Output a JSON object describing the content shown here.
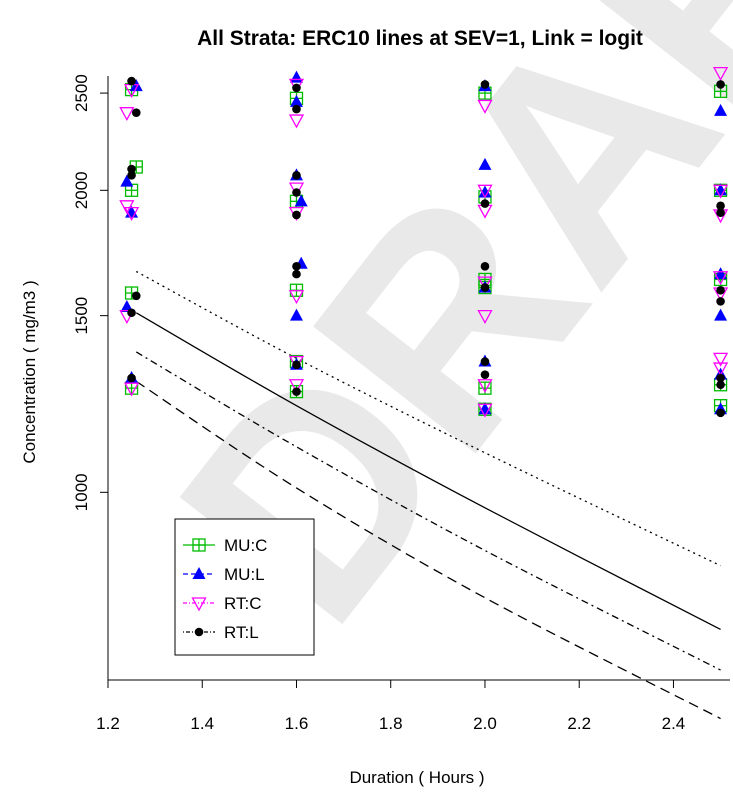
{
  "watermark_text": "DRAFT",
  "chart_data": {
    "type": "scatter",
    "title": "All Strata: ERC10 lines at SEV=1, Link = logit",
    "xlabel": "Duration ( Hours )",
    "ylabel": "Concentration ( mg/m3 )",
    "x_ticks": [
      "1.2",
      "1.4",
      "1.6",
      "1.8",
      "2.0",
      "2.2",
      "2.4"
    ],
    "y_ticks": [
      "1000",
      "1500",
      "2000",
      "2500"
    ],
    "xlim": [
      1.2,
      2.52
    ],
    "ylim": [
      650,
      2600
    ],
    "y_scale": "log",
    "grid": false,
    "legend_position": "bottom-left",
    "series": [
      {
        "name": "MU:C",
        "color": "#00bb00",
        "marker": "square-plus",
        "line": "solid",
        "points": [
          [
            1.25,
            1270
          ],
          [
            1.25,
            1580
          ],
          [
            1.25,
            2000
          ],
          [
            1.26,
            2110
          ],
          [
            1.25,
            2520
          ],
          [
            1.6,
            1260
          ],
          [
            1.6,
            1350
          ],
          [
            1.6,
            1590
          ],
          [
            1.6,
            1950
          ],
          [
            1.6,
            2470
          ],
          [
            2.0,
            1270
          ],
          [
            2.0,
            1600
          ],
          [
            2.0,
            1630
          ],
          [
            2.0,
            1970
          ],
          [
            2.0,
            2500
          ],
          [
            2.0,
            1210
          ],
          [
            2.5,
            1220
          ],
          [
            2.5,
            1280
          ],
          [
            2.5,
            1630
          ],
          [
            2.5,
            2000
          ],
          [
            2.5,
            2510
          ]
        ]
      },
      {
        "name": "MU:L",
        "color": "#0000ff",
        "marker": "triangle-up",
        "line": "dashed",
        "points": [
          [
            1.25,
            1300
          ],
          [
            1.24,
            1530
          ],
          [
            1.24,
            2040
          ],
          [
            1.26,
            2540
          ],
          [
            1.25,
            1900
          ],
          [
            1.6,
            1340
          ],
          [
            1.61,
            1690
          ],
          [
            1.6,
            1500
          ],
          [
            1.61,
            1950
          ],
          [
            1.6,
            2070
          ],
          [
            1.6,
            2450
          ],
          [
            1.6,
            2590
          ],
          [
            2.0,
            1210
          ],
          [
            2.0,
            1350
          ],
          [
            2.0,
            1600
          ],
          [
            2.0,
            1990
          ],
          [
            2.0,
            2120
          ],
          [
            2.0,
            2540
          ],
          [
            2.5,
            1210
          ],
          [
            2.5,
            1310
          ],
          [
            2.5,
            1500
          ],
          [
            2.5,
            1650
          ],
          [
            2.5,
            2000
          ],
          [
            2.5,
            2400
          ]
        ]
      },
      {
        "name": "RT:C",
        "color": "#ff00ff",
        "marker": "triangle-down",
        "line": "dashdot",
        "points": [
          [
            1.24,
            1500
          ],
          [
            1.25,
            1270
          ],
          [
            1.25,
            1900
          ],
          [
            1.24,
            1930
          ],
          [
            1.24,
            2390
          ],
          [
            1.25,
            2520
          ],
          [
            1.6,
            1280
          ],
          [
            1.6,
            1350
          ],
          [
            1.6,
            1570
          ],
          [
            1.6,
            1900
          ],
          [
            1.6,
            2010
          ],
          [
            1.6,
            2350
          ],
          [
            1.6,
            2550
          ],
          [
            2.0,
            1210
          ],
          [
            2.0,
            1280
          ],
          [
            2.0,
            1500
          ],
          [
            2.0,
            1620
          ],
          [
            2.0,
            1910
          ],
          [
            2.0,
            2000
          ],
          [
            2.0,
            2430
          ],
          [
            2.5,
            1330
          ],
          [
            2.5,
            1360
          ],
          [
            2.5,
            1580
          ],
          [
            2.5,
            1640
          ],
          [
            2.5,
            1890
          ],
          [
            2.5,
            2000
          ],
          [
            2.5,
            2620
          ]
        ]
      },
      {
        "name": "RT:L",
        "color": "#000000",
        "marker": "circle-filled",
        "line": "dotdash",
        "points": [
          [
            1.25,
            1300
          ],
          [
            1.25,
            1510
          ],
          [
            1.26,
            1570
          ],
          [
            1.25,
            2070
          ],
          [
            1.25,
            2100
          ],
          [
            1.25,
            2570
          ],
          [
            1.26,
            2390
          ],
          [
            1.6,
            1260
          ],
          [
            1.6,
            1340
          ],
          [
            1.6,
            1650
          ],
          [
            1.6,
            1680
          ],
          [
            1.6,
            1890
          ],
          [
            1.6,
            1990
          ],
          [
            1.6,
            2070
          ],
          [
            1.6,
            2410
          ],
          [
            1.6,
            2530
          ],
          [
            2.0,
            1310
          ],
          [
            2.0,
            1350
          ],
          [
            2.0,
            1600
          ],
          [
            2.0,
            1680
          ],
          [
            2.0,
            1940
          ],
          [
            2.0,
            2550
          ],
          [
            2.5,
            1200
          ],
          [
            2.5,
            1280
          ],
          [
            2.5,
            1300
          ],
          [
            2.5,
            1550
          ],
          [
            2.5,
            1590
          ],
          [
            2.5,
            1900
          ],
          [
            2.5,
            1930
          ],
          [
            2.5,
            2550
          ]
        ]
      }
    ],
    "fit_lines": [
      {
        "style": "dotted",
        "x": [
          1.26,
          1.6,
          2.0,
          2.5
        ],
        "y": [
          1660,
          1360,
          1095,
          845
        ]
      },
      {
        "style": "solid",
        "x": [
          1.26,
          1.6,
          2.0,
          2.5
        ],
        "y": [
          1510,
          1220,
          965,
          730
        ]
      },
      {
        "style": "dashdot",
        "x": [
          1.26,
          1.6,
          2.0,
          2.5
        ],
        "y": [
          1380,
          1110,
          875,
          665
        ]
      },
      {
        "style": "dashed",
        "x": [
          1.26,
          1.6,
          2.0,
          2.5
        ],
        "y": [
          1290,
          1010,
          785,
          595
        ]
      }
    ]
  }
}
